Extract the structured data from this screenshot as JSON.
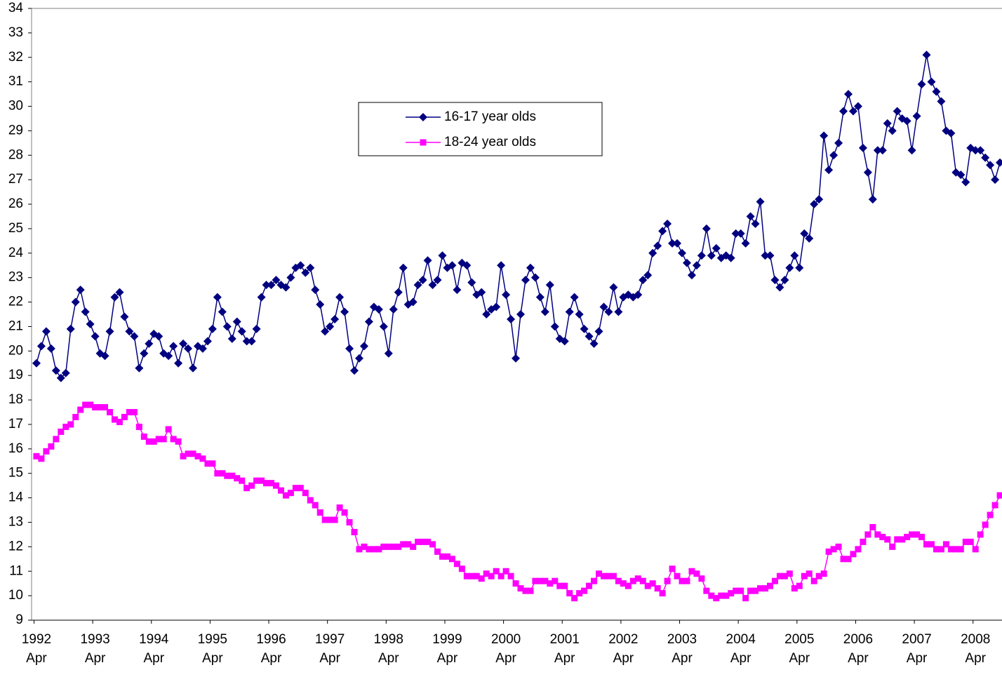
{
  "chart_data": {
    "type": "line",
    "categories": [
      "1992\nApr",
      null,
      null,
      null,
      null,
      null,
      null,
      null,
      null,
      null,
      null,
      null,
      "1993\nApr",
      null,
      null,
      null,
      null,
      null,
      null,
      null,
      null,
      null,
      null,
      null,
      "1994\nApr",
      null,
      null,
      null,
      null,
      null,
      null,
      null,
      null,
      null,
      null,
      null,
      "1995\nApr",
      null,
      null,
      null,
      null,
      null,
      null,
      null,
      null,
      null,
      null,
      null,
      "1996\nApr",
      null,
      null,
      null,
      null,
      null,
      null,
      null,
      null,
      null,
      null,
      null,
      "1997\nApr",
      null,
      null,
      null,
      null,
      null,
      null,
      null,
      null,
      null,
      null,
      null,
      "1998\nApr",
      null,
      null,
      null,
      null,
      null,
      null,
      null,
      null,
      null,
      null,
      null,
      "1999\nApr",
      null,
      null,
      null,
      null,
      null,
      null,
      null,
      null,
      null,
      null,
      null,
      "2000\nApr",
      null,
      null,
      null,
      null,
      null,
      null,
      null,
      null,
      null,
      null,
      null,
      "2001\nApr",
      null,
      null,
      null,
      null,
      null,
      null,
      null,
      null,
      null,
      null,
      null,
      "2002\nApr",
      null,
      null,
      null,
      null,
      null,
      null,
      null,
      null,
      null,
      null,
      null,
      "2003\nApr",
      null,
      null,
      null,
      null,
      null,
      null,
      null,
      null,
      null,
      null,
      null,
      "2004\nApr",
      null,
      null,
      null,
      null,
      null,
      null,
      null,
      null,
      null,
      null,
      null,
      "2005\nApr",
      null,
      null,
      null,
      null,
      null,
      null,
      null,
      null,
      null,
      null,
      null,
      "2006\nApr",
      null,
      null,
      null,
      null,
      null,
      null,
      null,
      null,
      null,
      null,
      null,
      "2007\nApr",
      null,
      null,
      null,
      null,
      null,
      null,
      null,
      null,
      null,
      null,
      null,
      "2008\nApr",
      null,
      null,
      null,
      null,
      null
    ],
    "series": [
      {
        "name": "16-17 year olds",
        "color": "#000080",
        "marker": "diamond",
        "values": [
          19.5,
          20.2,
          20.8,
          20.1,
          19.2,
          18.9,
          19.1,
          20.9,
          22.0,
          22.5,
          21.6,
          21.1,
          20.6,
          19.9,
          19.8,
          20.8,
          22.2,
          22.4,
          21.4,
          20.8,
          20.6,
          19.3,
          19.9,
          20.3,
          20.7,
          20.6,
          19.9,
          19.8,
          20.2,
          19.5,
          20.3,
          20.1,
          19.3,
          20.2,
          20.1,
          20.4,
          20.9,
          22.2,
          21.6,
          21.0,
          20.5,
          21.2,
          20.8,
          20.4,
          20.4,
          20.9,
          22.2,
          22.7,
          22.7,
          22.9,
          22.7,
          22.6,
          23.0,
          23.4,
          23.5,
          23.2,
          23.4,
          22.5,
          21.9,
          20.8,
          21.0,
          21.3,
          22.2,
          21.6,
          20.1,
          19.2,
          19.7,
          20.2,
          21.2,
          21.8,
          21.7,
          21.0,
          19.9,
          21.7,
          22.4,
          23.4,
          21.9,
          22.0,
          22.7,
          22.9,
          23.7,
          22.7,
          22.9,
          23.9,
          23.4,
          23.5,
          22.5,
          23.6,
          23.5,
          22.8,
          22.3,
          22.4,
          21.5,
          21.7,
          21.8,
          23.5,
          22.3,
          21.3,
          19.7,
          21.5,
          22.9,
          23.4,
          23.0,
          22.2,
          21.6,
          22.7,
          21.0,
          20.5,
          20.4,
          21.6,
          22.2,
          21.5,
          20.9,
          20.6,
          20.3,
          20.8,
          21.8,
          21.6,
          22.6,
          21.6,
          22.2,
          22.3,
          22.2,
          22.3,
          22.9,
          23.1,
          24.0,
          24.3,
          24.9,
          25.2,
          24.4,
          24.4,
          24.0,
          23.6,
          23.1,
          23.5,
          23.9,
          25.0,
          23.9,
          24.2,
          23.8,
          23.9,
          23.8,
          24.8,
          24.8,
          24.4,
          25.5,
          25.2,
          26.1,
          23.9,
          23.9,
          22.9,
          22.6,
          22.9,
          23.4,
          23.9,
          23.4,
          24.8,
          24.6,
          26.0,
          26.2,
          28.8,
          27.4,
          28.0,
          28.5,
          29.8,
          30.5,
          29.8,
          30.0,
          28.3,
          27.3,
          26.2,
          28.2,
          28.2,
          29.3,
          29.0,
          29.8,
          29.5,
          29.4,
          28.2,
          29.6,
          30.9,
          32.1,
          31.0,
          30.6,
          30.2,
          29.0,
          28.9,
          27.3,
          27.2,
          26.9,
          28.3,
          28.2,
          28.2,
          27.9,
          27.6,
          27.0,
          27.7
        ]
      },
      {
        "name": "18-24 year olds",
        "color": "#FF00FF",
        "marker": "square",
        "values": [
          15.7,
          15.6,
          15.9,
          16.1,
          16.4,
          16.7,
          16.9,
          17.0,
          17.3,
          17.6,
          17.8,
          17.8,
          17.7,
          17.7,
          17.7,
          17.5,
          17.2,
          17.1,
          17.3,
          17.5,
          17.5,
          16.9,
          16.5,
          16.3,
          16.3,
          16.4,
          16.4,
          16.8,
          16.4,
          16.3,
          15.7,
          15.8,
          15.8,
          15.7,
          15.6,
          15.4,
          15.4,
          15.0,
          15.0,
          14.9,
          14.9,
          14.8,
          14.7,
          14.4,
          14.5,
          14.7,
          14.7,
          14.6,
          14.6,
          14.5,
          14.3,
          14.1,
          14.2,
          14.4,
          14.4,
          14.2,
          13.9,
          13.7,
          13.4,
          13.1,
          13.1,
          13.1,
          13.6,
          13.4,
          13.0,
          12.6,
          11.9,
          12.0,
          11.9,
          11.9,
          11.9,
          12.0,
          12.0,
          12.0,
          12.0,
          12.1,
          12.1,
          12.0,
          12.2,
          12.2,
          12.2,
          12.1,
          11.8,
          11.6,
          11.6,
          11.5,
          11.3,
          11.1,
          10.8,
          10.8,
          10.8,
          10.7,
          10.9,
          10.8,
          11.0,
          10.8,
          11.0,
          10.8,
          10.5,
          10.3,
          10.2,
          10.2,
          10.6,
          10.6,
          10.6,
          10.5,
          10.6,
          10.4,
          10.4,
          10.1,
          9.9,
          10.1,
          10.2,
          10.4,
          10.6,
          10.9,
          10.8,
          10.8,
          10.8,
          10.6,
          10.5,
          10.4,
          10.6,
          10.7,
          10.6,
          10.4,
          10.5,
          10.3,
          10.1,
          10.6,
          11.1,
          10.8,
          10.6,
          10.6,
          11.0,
          10.9,
          10.7,
          10.2,
          10.0,
          9.9,
          10.0,
          10.0,
          10.1,
          10.2,
          10.2,
          9.9,
          10.2,
          10.2,
          10.3,
          10.3,
          10.4,
          10.6,
          10.8,
          10.8,
          10.9,
          10.3,
          10.4,
          10.8,
          10.9,
          10.6,
          10.8,
          10.9,
          11.8,
          11.9,
          12.0,
          11.5,
          11.5,
          11.7,
          11.9,
          12.2,
          12.5,
          12.8,
          12.5,
          12.4,
          12.3,
          12.0,
          12.3,
          12.3,
          12.4,
          12.5,
          12.5,
          12.4,
          12.1,
          12.1,
          11.9,
          11.9,
          12.1,
          11.9,
          11.9,
          11.9,
          12.2,
          12.2,
          11.9,
          12.5,
          12.9,
          13.3,
          13.7,
          14.1
        ]
      }
    ],
    "ylim": [
      9,
      34
    ],
    "yticks": [
      9,
      10,
      11,
      12,
      13,
      14,
      15,
      16,
      17,
      18,
      19,
      20,
      21,
      22,
      23,
      24,
      25,
      26,
      27,
      28,
      29,
      30,
      31,
      32,
      33,
      34
    ],
    "grid": false
  }
}
